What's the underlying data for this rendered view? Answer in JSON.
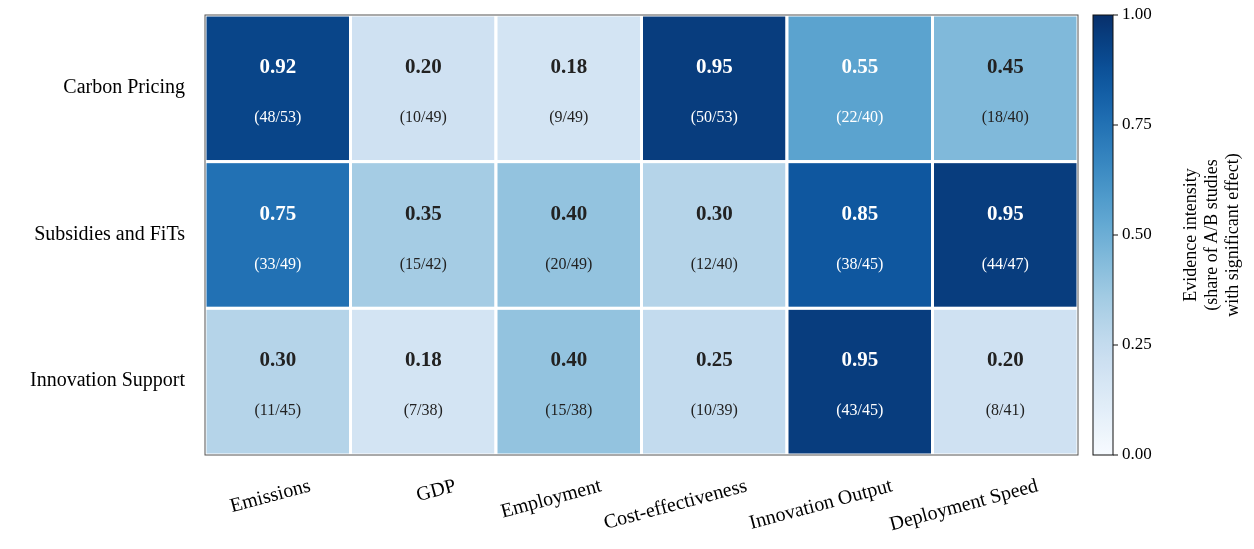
{
  "chart_data": {
    "type": "heatmap",
    "categories": [
      "Emissions",
      "GDP",
      "Employment",
      "Cost-effectiveness",
      "Innovation Output",
      "Deployment Speed"
    ],
    "y_categories": [
      "Carbon Pricing",
      "Subsidies and FiTs",
      "Innovation Support"
    ],
    "cells": [
      [
        0.92,
        0.2,
        0.18,
        0.95,
        0.55,
        0.45
      ],
      [
        0.75,
        0.35,
        0.4,
        0.3,
        0.85,
        0.95
      ],
      [
        0.3,
        0.18,
        0.4,
        0.25,
        0.95,
        0.2
      ]
    ],
    "cell_labels": [
      [
        "0.92\n(48/53)",
        "0.20\n(10/49)",
        "0.18\n(9/49)",
        "0.95\n(50/53)",
        "0.55\n(22/40)",
        "0.45\n(18/40)"
      ],
      [
        "0.75\n(33/49)",
        "0.35\n(15/42)",
        "0.40\n(20/49)",
        "0.30\n(12/40)",
        "0.85\n(38/45)",
        "0.95\n(44/47)"
      ],
      [
        "0.30\n(11/45)",
        "0.18\n(7/38)",
        "0.40\n(15/38)",
        "0.25\n(10/39)",
        "0.95\n(43/45)",
        "0.20\n(8/41)"
      ]
    ],
    "clim": [
      0,
      1
    ],
    "cticks": [
      {
        "value": 0,
        "label": "0.00"
      },
      {
        "value": 0.25,
        "label": "0.25"
      },
      {
        "value": 0.5,
        "label": "0.50"
      },
      {
        "value": 0.75,
        "label": "0.75"
      },
      {
        "value": 1,
        "label": "1.00"
      }
    ],
    "clabel": "Evidence intensity\n(share of A/B studies\nwith significant effect)"
  }
}
